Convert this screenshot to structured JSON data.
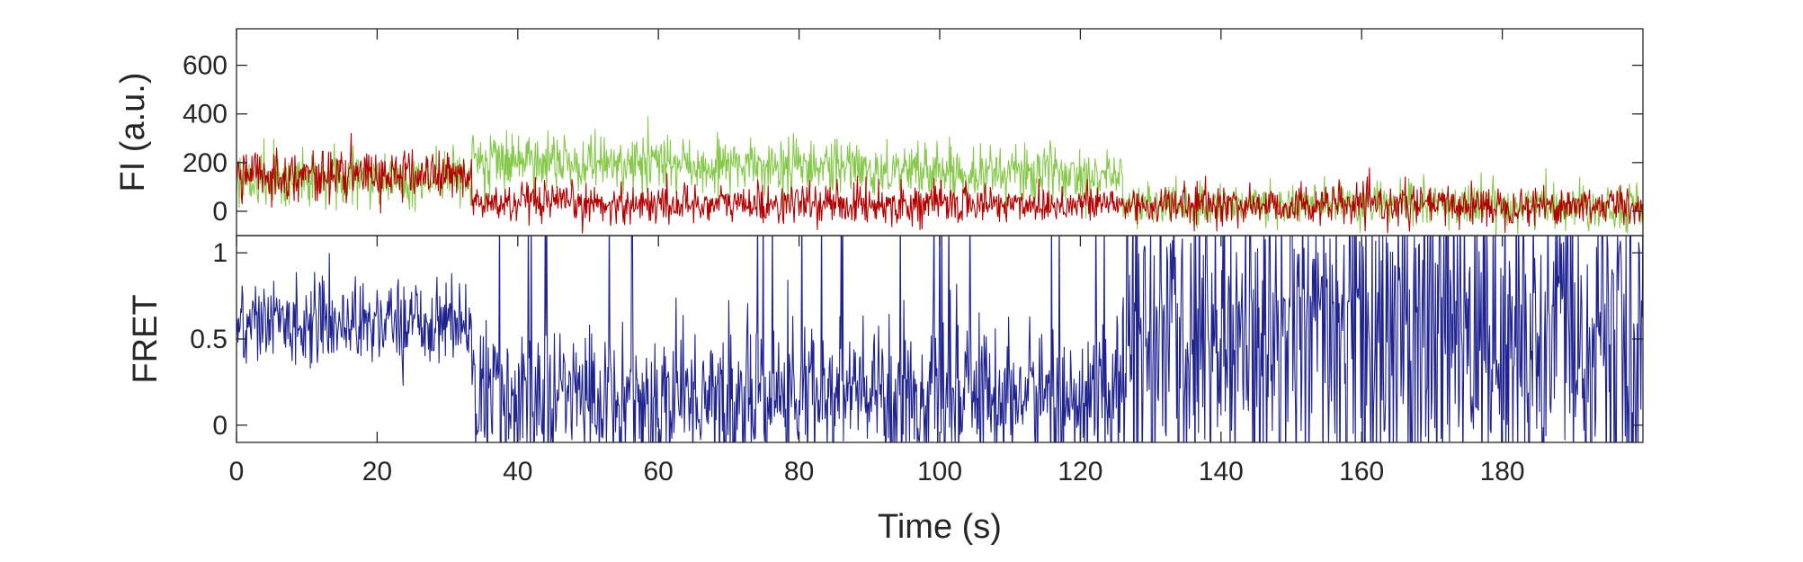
{
  "chart_data": [
    {
      "type": "line",
      "ylabel": "FI (a.u.)",
      "xlim": [
        0,
        200
      ],
      "ylim": [
        -100,
        750
      ],
      "yticks": [
        0,
        200,
        400,
        600
      ],
      "grid": false,
      "series": [
        {
          "color": "#86c94a",
          "segments": [
            {
              "t0": 0,
              "t1": 33.5,
              "mean": 130,
              "noise": 55
            },
            {
              "t0": 33.5,
              "t1": 126,
              "mean": 170,
              "start": 210,
              "end": 150,
              "noise": 55
            },
            {
              "t0": 126,
              "t1": 200,
              "mean": 25,
              "noise": 45
            }
          ]
        },
        {
          "color": "#b30000",
          "segments": [
            {
              "t0": 0,
              "t1": 33.5,
              "mean": 150,
              "noise": 50
            },
            {
              "t0": 33.5,
              "t1": 126,
              "mean": 30,
              "noise": 40
            },
            {
              "t0": 126,
              "t1": 200,
              "mean": 25,
              "noise": 40
            }
          ]
        }
      ]
    },
    {
      "type": "line",
      "ylabel": "FRET",
      "xlabel": "Time (s)",
      "xlim": [
        0,
        200
      ],
      "ylim": [
        -0.1,
        1.1
      ],
      "xticks": [
        0,
        20,
        40,
        60,
        80,
        100,
        120,
        140,
        160,
        180
      ],
      "yticks": [
        0,
        0.5,
        1
      ],
      "grid": false,
      "series": [
        {
          "color": "#1f2390",
          "segments": [
            {
              "t0": 0,
              "t1": 33.5,
              "mean": 0.6,
              "noise": 0.12
            },
            {
              "t0": 33.5,
              "t1": 126,
              "mean": 0.18,
              "noise": 0.2
            },
            {
              "t0": 126,
              "t1": 200,
              "mean": 0.5,
              "noise": 0.45
            }
          ]
        }
      ]
    }
  ]
}
